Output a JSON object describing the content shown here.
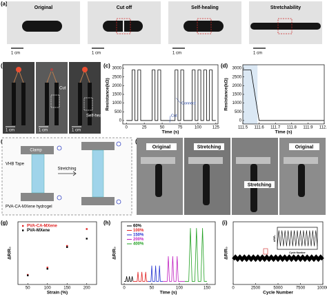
{
  "panel_labels": [
    "(a)",
    "(b)",
    "(c)",
    "(d)",
    "(e)",
    "(f)",
    "(g)",
    "(h)",
    "(i)"
  ],
  "panel_a": {
    "captions": [
      "Original",
      "Cut off",
      "Self-healing",
      "Stretchability"
    ],
    "scale_bar": "1 cm"
  },
  "panel_b": {
    "annotations": [
      "Cut",
      "Self-healing"
    ],
    "scale_bar": "1 cm"
  },
  "panel_e": {
    "labels": [
      "Clamp",
      "VHB Tape",
      "Stretching",
      "PVA-CA-MXene hydrogel"
    ]
  },
  "panel_f": {
    "captions": [
      "Original",
      "Stretching",
      "Stretching",
      "Original"
    ]
  },
  "chart_data": [
    {
      "type": "line",
      "xlabel": "Time (s)",
      "ylabel": "Resistance(kΩ)",
      "xlim": [
        -5,
        128
      ],
      "ylim": [
        -200,
        3200
      ],
      "xticks": [
        0,
        25,
        50,
        75,
        100,
        125
      ],
      "yticks": [
        0,
        500,
        1000,
        1500,
        2000,
        2500,
        3000
      ],
      "annotations": [
        "Connect",
        "Cut"
      ],
      "series": [
        {
          "color": "#000000",
          "x": [
            0,
            8,
            8,
            12,
            12,
            16,
            16,
            20,
            20,
            36,
            36,
            40,
            40,
            44,
            44,
            48,
            48,
            68,
            68,
            72,
            72,
            76,
            76,
            80,
            80,
            92,
            92,
            96,
            96,
            100,
            100,
            104,
            104,
            108,
            108,
            112,
            112,
            116,
            116,
            120,
            120,
            125
          ],
          "values": [
            0,
            0,
            2900,
            2900,
            0,
            0,
            2900,
            2900,
            0,
            0,
            2900,
            2900,
            0,
            0,
            2900,
            2900,
            0,
            0,
            2900,
            2900,
            0,
            0,
            2900,
            2900,
            0,
            0,
            2900,
            2900,
            0,
            0,
            2900,
            2900,
            0,
            0,
            2900,
            2900,
            0,
            0,
            2900,
            2900,
            0,
            0
          ]
        }
      ]
    },
    {
      "type": "line",
      "xlabel": "Time (s)",
      "ylabel": "Resistance(kΩ)",
      "xlim": [
        111.5,
        112.0
      ],
      "ylim": [
        -200,
        3200
      ],
      "xticks": [
        111.5,
        111.6,
        111.7,
        111.8,
        111.9,
        {
          "value": 112,
          "label": "112.0"
        }
      ],
      "yticks": [
        0,
        500,
        1000,
        1500,
        2000,
        2500,
        3000
      ],
      "shaded_region": [
        111.5,
        111.59
      ],
      "series": [
        {
          "color": "#000000",
          "x": [
            111.5,
            111.55,
            111.6,
            112.0
          ],
          "values": [
            2900,
            2900,
            0,
            0
          ]
        }
      ]
    },
    {
      "type": "scatter",
      "xlabel": "Strain (%)",
      "ylabel": "ΔR/R₀",
      "xlim": [
        25,
        225
      ],
      "ylim": [
        0,
        5.2
      ],
      "xticks": [
        50,
        100,
        150,
        200
      ],
      "series": [
        {
          "name": "PVA-CA-MXene",
          "color": "#e02020",
          "x": [
            50,
            100,
            150,
            200
          ],
          "values": [
            0.8,
            1.4,
            3.2,
            4.6
          ]
        },
        {
          "name": "PVA-MXene",
          "color": "#000000",
          "x": [
            50,
            100,
            150,
            200
          ],
          "values": [
            0.75,
            1.3,
            3.1,
            3.8
          ]
        }
      ]
    },
    {
      "type": "line",
      "xlabel": "Time (s)",
      "ylabel": "ΔR/R₀",
      "xlim": [
        -5,
        165
      ],
      "ylim": [
        0,
        1
      ],
      "xticks": [
        0,
        50,
        100,
        150
      ],
      "series": [
        {
          "name": "60%",
          "color": "#000000",
          "x": [
            0,
            3,
            4.5,
            6,
            8,
            9.5,
            11,
            13,
            14.5,
            16
          ],
          "values": [
            0.05,
            0.05,
            0.13,
            0.05,
            0.05,
            0.13,
            0.05,
            0.05,
            0.13,
            0.05
          ]
        },
        {
          "name": "100%",
          "color": "#e02020",
          "x": [
            16,
            23.5,
            25,
            26.5,
            30.5,
            32,
            33.5,
            37.5,
            39,
            40.5,
            43
          ],
          "values": [
            0.05,
            0.05,
            0.2,
            0.05,
            0.05,
            0.2,
            0.05,
            0.05,
            0.2,
            0.05,
            0.05
          ]
        },
        {
          "name": "150%",
          "color": "#2030d0",
          "x": [
            43,
            48.5,
            50,
            51.5,
            55.5,
            57,
            58.5,
            62.5,
            64,
            65.5,
            70
          ],
          "values": [
            0.05,
            0.05,
            0.3,
            0.05,
            0.05,
            0.3,
            0.05,
            0.05,
            0.3,
            0.05,
            0.05
          ]
        },
        {
          "name": "200%",
          "color": "#c020c0",
          "x": [
            70,
            78,
            80,
            82,
            86,
            88,
            90,
            94,
            96,
            98,
            110
          ],
          "values": [
            0.05,
            0.05,
            0.45,
            0.05,
            0.05,
            0.45,
            0.05,
            0.05,
            0.45,
            0.05,
            0.05
          ]
        },
        {
          "name": "400%",
          "color": "#20a020",
          "x": [
            110,
            117,
            120,
            123,
            128,
            131,
            134,
            139,
            142,
            145,
            150
          ],
          "values": [
            0.05,
            0.05,
            0.9,
            0.05,
            0.05,
            0.9,
            0.05,
            0.05,
            0.9,
            0.05,
            0.05
          ]
        }
      ]
    },
    {
      "type": "line",
      "xlabel": "Cycle Number",
      "ylabel": "ΔR/R₀",
      "xlim": [
        0,
        10000
      ],
      "ylim": [
        0,
        5
      ],
      "xticks": [
        0,
        2500,
        5000,
        7500,
        10000
      ],
      "series": [
        {
          "color": "#000000",
          "x": [
            0,
            250,
            500,
            750,
            1000,
            1250,
            1500,
            1750,
            2000,
            2250,
            2500,
            2750,
            3000,
            3250,
            3500,
            3750,
            4000,
            4250,
            4500,
            4750,
            5000,
            5250,
            5500,
            5750,
            6000,
            6250,
            6500,
            6750,
            7000,
            7250,
            7500,
            7750,
            8000,
            8250,
            8500,
            8750,
            9000,
            9250,
            9500,
            9750,
            10000
          ],
          "values": [
            2.0,
            2.2,
            2.0,
            2.2,
            2.0,
            2.2,
            2.0,
            2.2,
            2.0,
            2.2,
            2.0,
            2.2,
            2.0,
            2.2,
            2.0,
            2.2,
            2.0,
            2.2,
            2.0,
            2.2,
            2.0,
            2.2,
            2.0,
            2.2,
            2.0,
            2.2,
            2.0,
            2.2,
            2.0,
            2.2,
            2.0,
            2.2,
            2.0,
            2.2,
            2.0,
            2.2,
            2.0,
            2.2,
            2.0,
            2.2,
            2.0
          ]
        }
      ]
    },
    {
      "type": "line",
      "xlabel": "Cycle Number",
      "ylabel": "ΔR/R₀",
      "xlim": [
        0,
        26
      ],
      "ylim": [
        -0.2,
        1.2
      ],
      "series": [
        {
          "color": "#000000",
          "x": [
            0,
            1,
            2,
            3,
            4,
            5,
            6,
            7,
            8,
            9,
            10,
            11,
            12,
            13,
            14,
            15,
            16,
            17,
            18,
            19,
            20,
            21,
            22,
            23,
            24,
            25,
            26
          ],
          "values": [
            0,
            1,
            0,
            1,
            0,
            1,
            0,
            1,
            0,
            1,
            0,
            1,
            0,
            1,
            0,
            1,
            0,
            1,
            0,
            1,
            0,
            1,
            0,
            1,
            0,
            1,
            0
          ]
        }
      ]
    }
  ]
}
